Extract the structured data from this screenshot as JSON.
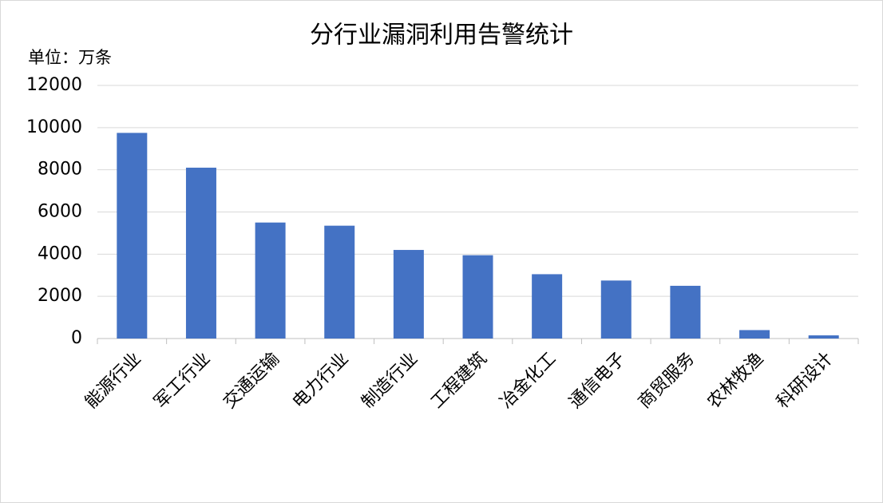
{
  "chart_data": {
    "type": "bar",
    "title": "分行业漏洞利用告警统计",
    "unit_label": "单位：万条",
    "categories": [
      "能源行业",
      "军工行业",
      "交通运输",
      "电力行业",
      "制造行业",
      "工程建筑",
      "冶金化工",
      "通信电子",
      "商贸服务",
      "农林牧渔",
      "科研设计"
    ],
    "values": [
      9750,
      8100,
      5500,
      5350,
      4200,
      3950,
      3050,
      2750,
      2500,
      400,
      150
    ],
    "color": "#4472c4",
    "ylim": [
      0,
      12000
    ],
    "yticks": [
      0,
      2000,
      4000,
      6000,
      8000,
      10000,
      12000
    ],
    "grid": true
  }
}
